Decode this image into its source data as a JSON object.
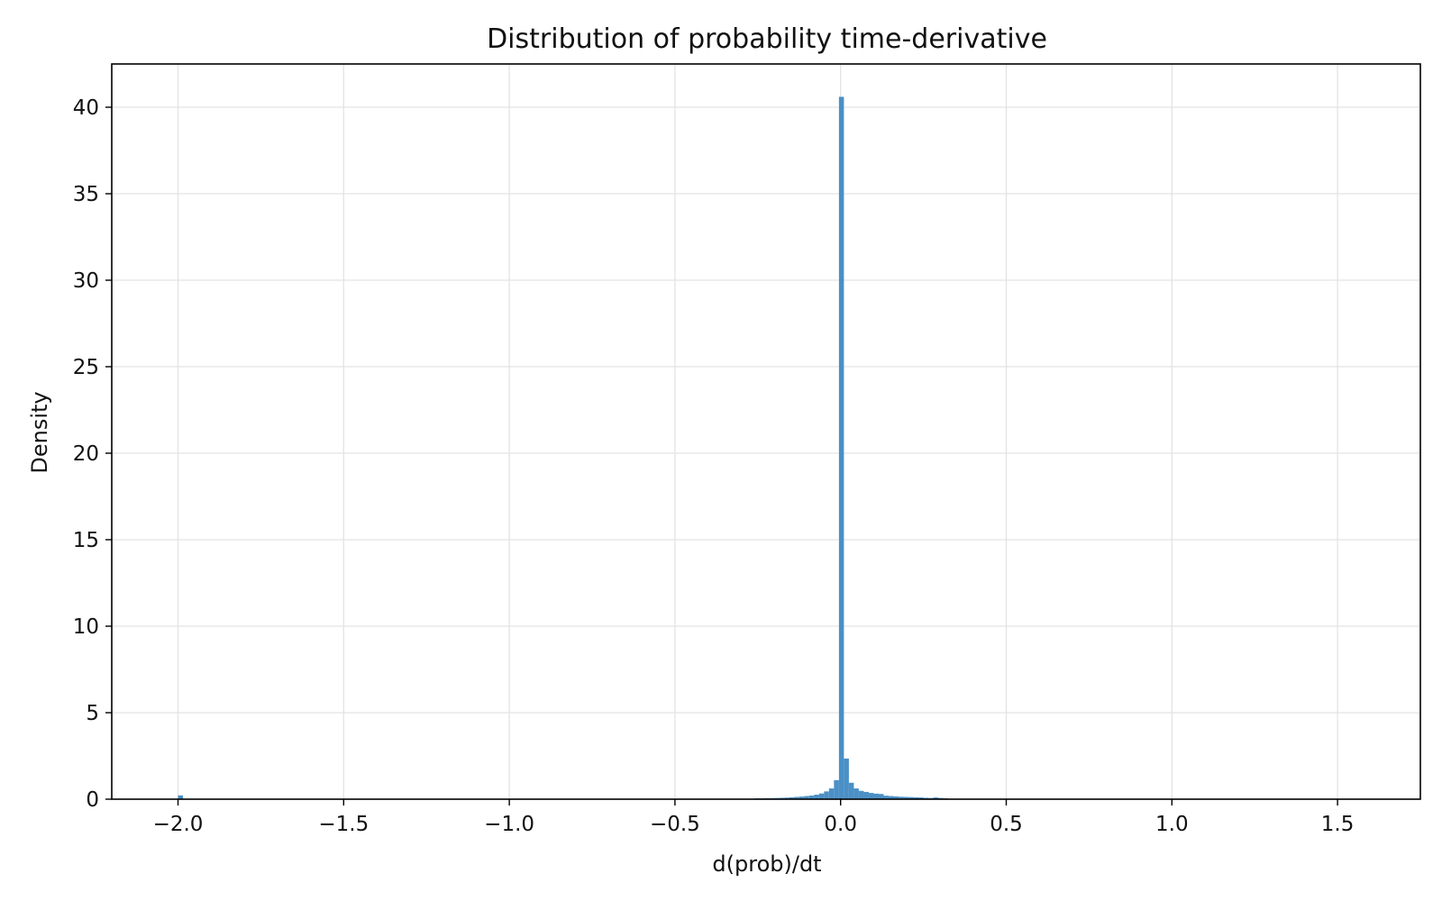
{
  "chart_data": {
    "type": "bar",
    "title": "Distribution of probability time-derivative",
    "xlabel": "d(prob)/dt",
    "ylabel": "Density",
    "xlim": [
      -2.2,
      1.75
    ],
    "ylim": [
      0,
      42.5
    ],
    "xticks": [
      -2.0,
      -1.5,
      -1.0,
      -0.5,
      0.0,
      0.5,
      1.0,
      1.5
    ],
    "xtick_labels": [
      "−2.0",
      "−1.5",
      "−1.0",
      "−0.5",
      "0.0",
      "0.5",
      "1.0",
      "1.5"
    ],
    "yticks": [
      0,
      5,
      10,
      15,
      20,
      25,
      30,
      35,
      40
    ],
    "ytick_labels": [
      "0",
      "5",
      "10",
      "15",
      "20",
      "25",
      "30",
      "35",
      "40"
    ],
    "grid": true,
    "bar_color": "#4a90c6",
    "bins": [
      {
        "x0": -2.0,
        "x1": -1.985,
        "density": 0.22
      },
      {
        "x0": -0.26,
        "x1": -0.245,
        "density": 0.05
      },
      {
        "x0": -0.245,
        "x1": -0.23,
        "density": 0.05
      },
      {
        "x0": -0.23,
        "x1": -0.215,
        "density": 0.06
      },
      {
        "x0": -0.215,
        "x1": -0.2,
        "density": 0.06
      },
      {
        "x0": -0.2,
        "x1": -0.185,
        "density": 0.07
      },
      {
        "x0": -0.185,
        "x1": -0.17,
        "density": 0.08
      },
      {
        "x0": -0.17,
        "x1": -0.155,
        "density": 0.09
      },
      {
        "x0": -0.155,
        "x1": -0.14,
        "density": 0.11
      },
      {
        "x0": -0.14,
        "x1": -0.125,
        "density": 0.13
      },
      {
        "x0": -0.125,
        "x1": -0.11,
        "density": 0.15
      },
      {
        "x0": -0.11,
        "x1": -0.095,
        "density": 0.18
      },
      {
        "x0": -0.095,
        "x1": -0.08,
        "density": 0.21
      },
      {
        "x0": -0.08,
        "x1": -0.065,
        "density": 0.26
      },
      {
        "x0": -0.065,
        "x1": -0.05,
        "density": 0.33
      },
      {
        "x0": -0.05,
        "x1": -0.035,
        "density": 0.45
      },
      {
        "x0": -0.035,
        "x1": -0.02,
        "density": 0.62
      },
      {
        "x0": -0.02,
        "x1": -0.005,
        "density": 1.1
      },
      {
        "x0": -0.005,
        "x1": 0.01,
        "density": 40.6
      },
      {
        "x0": 0.01,
        "x1": 0.025,
        "density": 2.35
      },
      {
        "x0": 0.025,
        "x1": 0.04,
        "density": 0.95
      },
      {
        "x0": 0.04,
        "x1": 0.055,
        "density": 0.62
      },
      {
        "x0": 0.055,
        "x1": 0.07,
        "density": 0.48
      },
      {
        "x0": 0.07,
        "x1": 0.085,
        "density": 0.42
      },
      {
        "x0": 0.085,
        "x1": 0.1,
        "density": 0.36
      },
      {
        "x0": 0.1,
        "x1": 0.115,
        "density": 0.32
      },
      {
        "x0": 0.115,
        "x1": 0.13,
        "density": 0.3
      },
      {
        "x0": 0.13,
        "x1": 0.145,
        "density": 0.2
      },
      {
        "x0": 0.145,
        "x1": 0.16,
        "density": 0.18
      },
      {
        "x0": 0.16,
        "x1": 0.175,
        "density": 0.16
      },
      {
        "x0": 0.175,
        "x1": 0.19,
        "density": 0.14
      },
      {
        "x0": 0.19,
        "x1": 0.205,
        "density": 0.13
      },
      {
        "x0": 0.205,
        "x1": 0.22,
        "density": 0.12
      },
      {
        "x0": 0.22,
        "x1": 0.235,
        "density": 0.11
      },
      {
        "x0": 0.235,
        "x1": 0.25,
        "density": 0.1
      },
      {
        "x0": 0.25,
        "x1": 0.265,
        "density": 0.08
      },
      {
        "x0": 0.265,
        "x1": 0.28,
        "density": 0.07
      },
      {
        "x0": 0.28,
        "x1": 0.295,
        "density": 0.1
      },
      {
        "x0": 0.295,
        "x1": 0.31,
        "density": 0.07
      },
      {
        "x0": 0.31,
        "x1": 0.325,
        "density": 0.05
      }
    ]
  }
}
